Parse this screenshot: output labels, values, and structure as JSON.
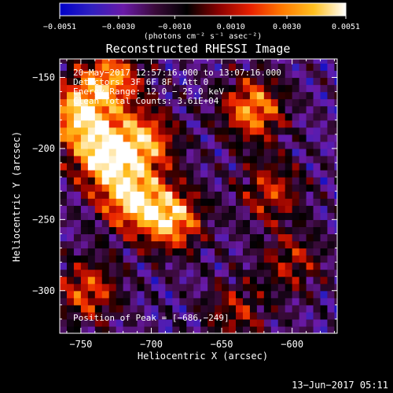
{
  "chart_data": {
    "type": "heatmap",
    "title": "Reconstructed RHESSI Image",
    "xlabel": "Heliocentric X (arcsec)",
    "ylabel": "Heliocentric Y (arcsec)",
    "xlim": [
      -765,
      -568
    ],
    "ylim": [
      -330,
      -137
    ],
    "xticks": [
      -750,
      -700,
      -650,
      -600
    ],
    "xtick_labels": [
      "−750",
      "−700",
      "−650",
      "−600"
    ],
    "yticks": [
      -150,
      -200,
      -250,
      -300
    ],
    "ytick_labels": [
      "−150",
      "−200",
      "−250",
      "−300"
    ],
    "colorbar": {
      "min": -0.0051,
      "max": 0.0051,
      "ticks": [
        -0.0051,
        -0.003,
        -0.001,
        0.001,
        0.003,
        0.0051
      ],
      "tick_labels": [
        "−0.0051",
        "−0.0030",
        "−0.0010",
        "0.0010",
        "0.0030",
        "0.0051"
      ],
      "units_label": "(photons cm⁻² s⁻¹ asec⁻²)",
      "colors": [
        "#0000c8",
        "#3020c0",
        "#6a1aa8",
        "#3a0a3a",
        "#000000",
        "#8a0000",
        "#e82000",
        "#ff7a00",
        "#ffc020",
        "#ffffff"
      ]
    },
    "annotations": {
      "time_range": "20−May−2017 12:57:16.000 to 13:07:16.000",
      "detectors": "Detectors: 3F 6F 8F, Att 0",
      "energy_range": "Energy Range: 12.0 − 25.0 keV",
      "clean": "Clean    Total Counts: 3.61E+04",
      "peak": "Position of Peak = [−686,−249]"
    },
    "peak_position": [
      -686,
      -249
    ],
    "bright_regions": [
      {
        "x": -752,
        "y": -175,
        "strength": 1.0
      },
      {
        "x": -735,
        "y": -205,
        "strength": 1.0
      },
      {
        "x": -715,
        "y": -235,
        "strength": 0.95
      },
      {
        "x": -686,
        "y": -249,
        "strength": 1.0
      },
      {
        "x": -705,
        "y": -195,
        "strength": 0.9
      },
      {
        "x": -728,
        "y": -150,
        "strength": 0.85
      },
      {
        "x": -628,
        "y": -172,
        "strength": 0.9
      },
      {
        "x": -745,
        "y": -300,
        "strength": 0.7
      },
      {
        "x": -615,
        "y": -230,
        "strength": 0.6
      },
      {
        "x": -600,
        "y": -280,
        "strength": 0.5
      },
      {
        "x": -640,
        "y": -315,
        "strength": 0.5
      }
    ]
  },
  "footer": {
    "timestamp": "13−Jun−2017 05:11"
  }
}
